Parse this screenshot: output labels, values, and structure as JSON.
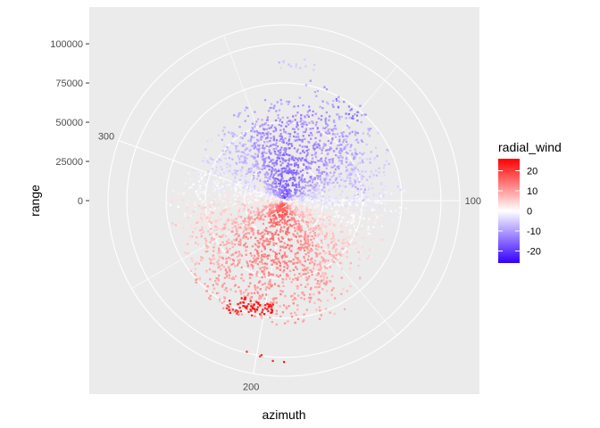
{
  "chart_data": {
    "type": "scatter",
    "coordinate_system": "polar",
    "xlabel": "azimuth",
    "ylabel": "range",
    "y_ticks": [
      0,
      25000,
      50000,
      75000,
      100000
    ],
    "y_tick_labels": [
      "0",
      "25000",
      "50000",
      "75000",
      "100000"
    ],
    "y_range": [
      0,
      112000
    ],
    "azimuth_ticks": [
      100,
      200,
      300
    ],
    "azimuth_tick_labels": [
      "100",
      "200",
      "300"
    ],
    "azimuth_range": [
      0,
      360
    ],
    "grid": true,
    "color_variable": "radial_wind",
    "color_scale": {
      "low": "#3300ff",
      "mid": "#ffffff",
      "high": "#ff0000",
      "limits": [
        -26,
        26
      ],
      "breaks": [
        20,
        10,
        0,
        -10,
        -20
      ],
      "break_labels": [
        "20",
        "10",
        "0",
        "-10",
        "-20"
      ]
    },
    "legend_position": "right",
    "legend_title": "radial_wind",
    "panel_background": "#ebebeb",
    "grid_color": "#ffffff"
  }
}
